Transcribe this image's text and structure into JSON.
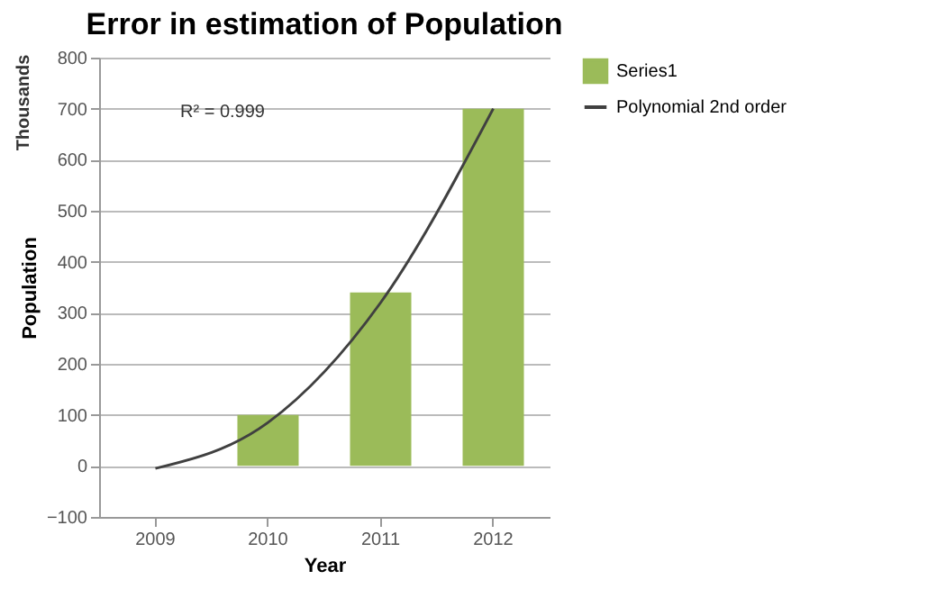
{
  "chart_data": {
    "type": "bar",
    "title": "Error in estimation of Population",
    "xlabel": "Year",
    "ylabel": "Population",
    "categories": [
      "2009",
      "2010",
      "2011",
      "2012"
    ],
    "series": [
      {
        "name": "Series1",
        "color": "#9bbb59",
        "values": [
          0,
          100,
          340,
          700
        ]
      },
      {
        "name": "Polynomial 2nd order",
        "type": "line",
        "color": "#404040",
        "values": [
          -5,
          85,
          320,
          700
        ]
      }
    ],
    "ylim": [
      -100,
      800
    ],
    "yticks": [
      -100,
      0,
      100,
      200,
      300,
      400,
      500,
      600,
      700,
      800
    ],
    "grid": "y",
    "legend": "right",
    "annotations": [
      "Thousands",
      "R² = 0.999"
    ]
  }
}
